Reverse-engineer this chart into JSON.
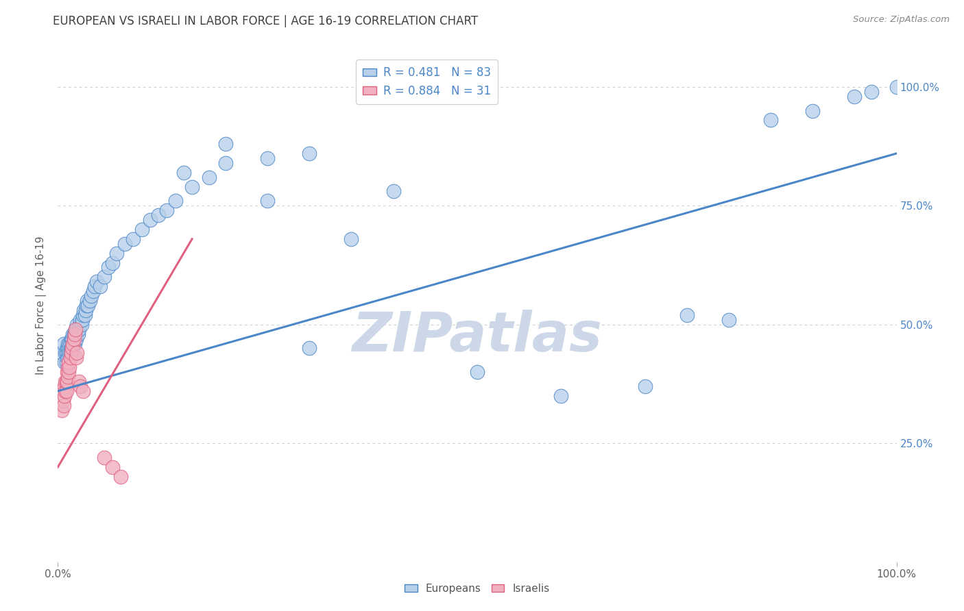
{
  "title": "EUROPEAN VS ISRAELI IN LABOR FORCE | AGE 16-19 CORRELATION CHART",
  "source": "Source: ZipAtlas.com",
  "ylabel": "In Labor Force | Age 16-19",
  "watermark": "ZIPatlas",
  "legend_entries": [
    {
      "label": "Europeans",
      "R": 0.481,
      "N": 83
    },
    {
      "label": "Israelis",
      "R": 0.884,
      "N": 31
    }
  ],
  "blue_scatter_x": [
    0.005,
    0.007,
    0.008,
    0.009,
    0.01,
    0.01,
    0.011,
    0.011,
    0.012,
    0.012,
    0.013,
    0.013,
    0.014,
    0.014,
    0.015,
    0.015,
    0.016,
    0.016,
    0.017,
    0.017,
    0.018,
    0.018,
    0.019,
    0.019,
    0.02,
    0.02,
    0.021,
    0.021,
    0.022,
    0.022,
    0.023,
    0.023,
    0.024,
    0.025,
    0.026,
    0.027,
    0.028,
    0.029,
    0.03,
    0.031,
    0.032,
    0.033,
    0.034,
    0.035,
    0.036,
    0.038,
    0.04,
    0.042,
    0.044,
    0.046,
    0.05,
    0.055,
    0.06,
    0.065,
    0.07,
    0.08,
    0.09,
    0.1,
    0.11,
    0.12,
    0.13,
    0.14,
    0.16,
    0.18,
    0.2,
    0.25,
    0.3,
    0.35,
    0.4,
    0.5,
    0.6,
    0.7,
    0.75,
    0.8,
    0.85,
    0.9,
    0.95,
    0.97,
    1.0,
    0.15,
    0.2,
    0.25,
    0.3
  ],
  "blue_scatter_y": [
    0.44,
    0.46,
    0.42,
    0.44,
    0.42,
    0.44,
    0.43,
    0.45,
    0.44,
    0.46,
    0.43,
    0.45,
    0.44,
    0.46,
    0.44,
    0.46,
    0.45,
    0.47,
    0.45,
    0.47,
    0.46,
    0.48,
    0.46,
    0.48,
    0.46,
    0.48,
    0.47,
    0.49,
    0.47,
    0.49,
    0.48,
    0.5,
    0.48,
    0.49,
    0.5,
    0.51,
    0.5,
    0.51,
    0.52,
    0.53,
    0.52,
    0.53,
    0.54,
    0.55,
    0.54,
    0.55,
    0.56,
    0.57,
    0.58,
    0.59,
    0.58,
    0.6,
    0.62,
    0.63,
    0.65,
    0.67,
    0.68,
    0.7,
    0.72,
    0.73,
    0.74,
    0.76,
    0.79,
    0.81,
    0.84,
    0.85,
    0.86,
    0.68,
    0.78,
    0.4,
    0.35,
    0.37,
    0.52,
    0.51,
    0.93,
    0.95,
    0.98,
    0.99,
    1.0,
    0.82,
    0.88,
    0.76,
    0.45
  ],
  "pink_scatter_x": [
    0.005,
    0.006,
    0.007,
    0.008,
    0.008,
    0.009,
    0.009,
    0.01,
    0.01,
    0.011,
    0.011,
    0.012,
    0.012,
    0.013,
    0.013,
    0.014,
    0.015,
    0.016,
    0.017,
    0.018,
    0.019,
    0.02,
    0.021,
    0.022,
    0.023,
    0.025,
    0.027,
    0.03,
    0.055,
    0.065,
    0.075
  ],
  "pink_scatter_y": [
    0.32,
    0.34,
    0.33,
    0.35,
    0.37,
    0.36,
    0.38,
    0.36,
    0.38,
    0.38,
    0.4,
    0.39,
    0.41,
    0.4,
    0.42,
    0.41,
    0.43,
    0.44,
    0.45,
    0.46,
    0.47,
    0.48,
    0.49,
    0.43,
    0.44,
    0.38,
    0.37,
    0.36,
    0.22,
    0.2,
    0.18
  ],
  "blue_line_x": [
    0.0,
    1.0
  ],
  "blue_line_y": [
    0.36,
    0.86
  ],
  "pink_line_x": [
    0.0,
    0.16
  ],
  "pink_line_y": [
    0.2,
    0.68
  ],
  "xlim": [
    0.0,
    1.0
  ],
  "ylim": [
    0.0,
    1.08
  ],
  "ytick_positions": [
    0.25,
    0.5,
    0.75,
    1.0
  ],
  "ytick_labels": [
    "25.0%",
    "50.0%",
    "75.0%",
    "100.0%"
  ],
  "grid_color": "#cccccc",
  "title_color": "#404040",
  "axis_label_color": "#606060",
  "blue_color": "#4a86c8",
  "pink_color": "#e06080",
  "blue_scatter_fill": "#b8d0ea",
  "pink_scatter_fill": "#f0b0c0",
  "source_text": "Source: ZipAtlas.com",
  "title_fontsize": 12,
  "right_tick_color": "#4a86c8",
  "watermark_color": "#ccd8e8",
  "watermark_fontsize": 58
}
